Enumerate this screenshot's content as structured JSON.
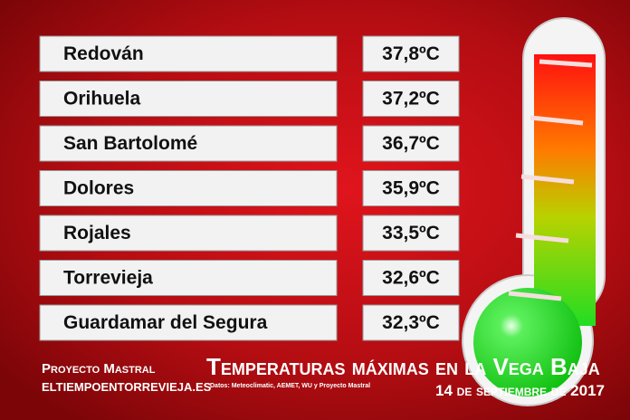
{
  "table": {
    "rows": [
      [
        "Redován",
        "37,8ºC"
      ],
      [
        "Orihuela",
        "37,2ºC"
      ],
      [
        "San Bartolomé",
        "36,7ºC"
      ],
      [
        "Dolores",
        "35,9ºC"
      ],
      [
        "Rojales",
        "33,5ºC"
      ],
      [
        "Torrevieja",
        "32,6ºC"
      ],
      [
        "Guardamar del Segura",
        "32,3ºC"
      ]
    ]
  },
  "footer": {
    "brand": "Proyecto Mastral",
    "site": "ELTIEMPOENTORREVIEJA.ES",
    "title": "Temperaturas máximas en la Vega Baja",
    "sources": "Datos: Meteoclimatic, AEMET, WU y Proyecto Mastral",
    "date": "14 de septiembre de 2017"
  }
}
